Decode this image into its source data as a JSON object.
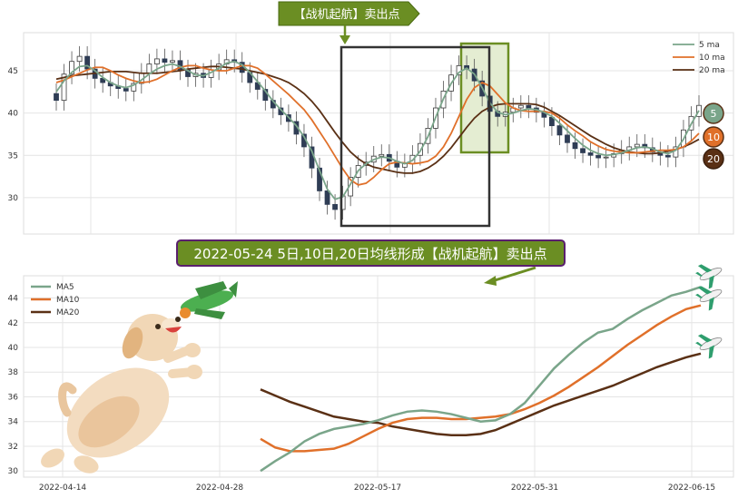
{
  "annotations": {
    "top_banner": "【战机起航】卖出点",
    "bottom_banner": "2022-05-24 5日,10日,20日均线形成【战机起航】卖出点"
  },
  "colors": {
    "ma5": "#7aa58a",
    "ma10": "#e0702a",
    "ma20": "#5a3015",
    "banner_fill": "#6b8e23",
    "banner_border": "#5a1f6e",
    "candle_up_stroke": "#3a3a3a",
    "candle_down_fill": "#2f3d55",
    "box_dark": "#333333",
    "box_green": "#6b8e23",
    "box_green_fill": "#e4edd2"
  },
  "badges": [
    "5",
    "10",
    "20"
  ],
  "chart_data": [
    {
      "type": "candlestick",
      "ylim": [
        25.7,
        49.5
      ],
      "yticks": [
        30,
        35,
        40,
        45
      ],
      "legend": {
        "position": "top-right",
        "entries": [
          "5 ma",
          "10 ma",
          "20 ma"
        ]
      },
      "ma5": [
        42.5,
        43.8,
        44.8,
        45.5,
        45.6,
        45.0,
        44.2,
        43.6,
        43.2,
        43.0,
        43.3,
        43.9,
        44.6,
        45.2,
        45.6,
        45.8,
        45.5,
        45.0,
        44.5,
        44.4,
        44.8,
        45.3,
        45.9,
        46.1,
        45.7,
        44.8,
        43.7,
        42.6,
        41.4,
        40.4,
        39.5,
        38.5,
        37.2,
        35.5,
        33.2,
        31.0,
        29.8,
        30.1,
        31.6,
        33.2,
        34.0,
        34.5,
        34.8,
        34.7,
        34.3,
        34.0,
        34.4,
        35.5,
        37.2,
        39.5,
        41.7,
        43.5,
        44.8,
        45.3,
        44.6,
        43.0,
        41.2,
        40.1,
        39.8,
        40.0,
        40.3,
        40.5,
        40.4,
        40.1,
        39.6,
        38.8,
        37.9,
        37.0,
        36.2,
        35.6,
        35.2,
        35.0,
        35.1,
        35.3,
        35.6,
        35.9,
        36.0,
        35.8,
        35.4,
        35.2,
        35.6,
        36.9,
        38.7,
        40.3
      ],
      "ma10": [
        43.6,
        43.9,
        44.3,
        44.7,
        45.1,
        45.4,
        45.4,
        45.0,
        44.5,
        44.1,
        43.8,
        43.6,
        43.7,
        44.0,
        44.5,
        45.0,
        45.4,
        45.6,
        45.6,
        45.3,
        45.1,
        45.0,
        45.0,
        45.3,
        45.6,
        45.6,
        45.3,
        44.6,
        43.8,
        43.0,
        42.2,
        41.3,
        40.4,
        39.2,
        37.8,
        36.4,
        34.9,
        33.4,
        32.1,
        31.5,
        31.7,
        32.4,
        33.3,
        34.0,
        34.2,
        34.1,
        34.0,
        34.1,
        34.3,
        34.9,
        36.0,
        37.6,
        39.6,
        41.6,
        43.0,
        43.6,
        43.2,
        42.2,
        41.2,
        40.6,
        40.3,
        40.2,
        40.2,
        40.2,
        40.0,
        39.4,
        38.6,
        37.9,
        37.3,
        36.6,
        36.1,
        35.7,
        35.5,
        35.4,
        35.3,
        35.3,
        35.4,
        35.5,
        35.6,
        35.6,
        35.7,
        36.0,
        36.7,
        37.6
      ],
      "ma20": [
        44.0,
        44.2,
        44.4,
        44.5,
        44.6,
        44.7,
        44.8,
        44.9,
        44.9,
        44.9,
        44.8,
        44.7,
        44.7,
        44.7,
        44.8,
        44.9,
        45.0,
        45.2,
        45.3,
        45.4,
        45.5,
        45.5,
        45.4,
        45.3,
        45.2,
        45.0,
        44.8,
        44.6,
        44.3,
        44.0,
        43.6,
        43.0,
        42.3,
        41.4,
        40.3,
        39.0,
        37.7,
        36.5,
        35.4,
        34.6,
        34.0,
        33.6,
        33.4,
        33.2,
        33.0,
        32.9,
        32.9,
        33.1,
        33.5,
        34.1,
        34.9,
        35.9,
        37.1,
        38.3,
        39.4,
        40.2,
        40.7,
        41.0,
        41.1,
        41.1,
        41.1,
        41.1,
        41.0,
        40.7,
        40.2,
        39.7,
        39.1,
        38.5,
        37.9,
        37.3,
        36.8,
        36.3,
        35.9,
        35.6,
        35.4,
        35.3,
        35.2,
        35.2,
        35.3,
        35.5,
        35.7,
        36.0,
        36.4,
        36.9
      ],
      "closes": [
        41.5,
        44.6,
        46.1,
        46.7,
        45.2,
        44.1,
        43.6,
        43.2,
        42.9,
        42.6,
        43.5,
        44.7,
        45.8,
        46.4,
        46.0,
        46.2,
        45.1,
        44.3,
        44.7,
        44.2,
        45.1,
        45.8,
        46.3,
        46.0,
        44.8,
        43.6,
        42.8,
        41.5,
        40.6,
        39.8,
        39.0,
        37.5,
        36.0,
        33.5,
        30.8,
        29.2,
        28.6,
        30.2,
        32.4,
        33.8,
        34.2,
        34.9,
        35.1,
        34.3,
        33.6,
        34.0,
        35.0,
        36.4,
        38.2,
        40.6,
        42.6,
        44.5,
        45.6,
        45.2,
        43.8,
        42.0,
        40.2,
        39.6,
        40.1,
        40.6,
        40.9,
        40.6,
        40.1,
        39.5,
        38.5,
        37.4,
        36.5,
        35.8,
        35.3,
        35.0,
        34.7,
        34.8,
        35.2,
        35.6,
        36.0,
        36.3,
        35.9,
        35.4,
        35.0,
        34.8,
        36.0,
        38.0,
        39.6,
        40.9
      ]
    },
    {
      "type": "line",
      "x_ticks": [
        "2022-04-14",
        "2022-04-28",
        "2022-05-17",
        "2022-05-31",
        "2022-06-15"
      ],
      "ylim": [
        29.5,
        45.8
      ],
      "yticks": [
        30,
        32,
        34,
        36,
        38,
        40,
        42,
        44
      ],
      "legend": {
        "position": "top-left"
      },
      "series": [
        {
          "name": "MA5",
          "values": [
            30.0,
            30.8,
            31.5,
            32.4,
            33.0,
            33.4,
            33.6,
            33.8,
            34.1,
            34.5,
            34.8,
            34.9,
            34.8,
            34.6,
            34.3,
            34.0,
            34.1,
            34.6,
            35.5,
            36.9,
            38.3,
            39.4,
            40.4,
            41.2,
            41.5,
            42.3,
            43.0,
            43.6,
            44.2,
            44.5,
            44.9
          ]
        },
        {
          "name": "MA10",
          "values": [
            32.6,
            31.9,
            31.6,
            31.6,
            31.7,
            31.8,
            32.2,
            32.8,
            33.4,
            33.9,
            34.2,
            34.3,
            34.3,
            34.2,
            34.2,
            34.3,
            34.4,
            34.6,
            35.0,
            35.5,
            36.1,
            36.8,
            37.6,
            38.4,
            39.3,
            40.2,
            41.0,
            41.8,
            42.5,
            43.1,
            43.4
          ]
        },
        {
          "name": "MA20",
          "values": [
            36.6,
            36.1,
            35.6,
            35.2,
            34.8,
            34.4,
            34.2,
            34.0,
            33.9,
            33.6,
            33.4,
            33.2,
            33.0,
            32.9,
            32.9,
            33.0,
            33.3,
            33.8,
            34.3,
            34.8,
            35.3,
            35.7,
            36.1,
            36.5,
            36.9,
            37.4,
            37.9,
            38.4,
            38.8,
            39.2,
            39.5
          ]
        }
      ]
    }
  ]
}
